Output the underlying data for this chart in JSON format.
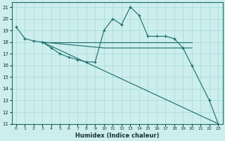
{
  "xlabel": "Humidex (Indice chaleur)",
  "xlim": [
    -0.5,
    23.5
  ],
  "ylim": [
    11,
    21.4
  ],
  "xticks": [
    0,
    1,
    2,
    3,
    4,
    5,
    6,
    7,
    8,
    9,
    10,
    11,
    12,
    13,
    14,
    15,
    16,
    17,
    18,
    19,
    20,
    21,
    22,
    23
  ],
  "yticks": [
    11,
    12,
    13,
    14,
    15,
    16,
    17,
    18,
    19,
    20,
    21
  ],
  "bg_color": "#cceeed",
  "grid_color": "#aadddd",
  "line_color": "#1a6b6b",
  "lines": [
    {
      "x": [
        0,
        1,
        2,
        3,
        4,
        5,
        6,
        7,
        8,
        9,
        10,
        11,
        12,
        13,
        14,
        15,
        16,
        17,
        18,
        19,
        20,
        22,
        23
      ],
      "y": [
        19.3,
        18.3,
        18.1,
        18.0,
        17.5,
        17.0,
        16.7,
        16.5,
        16.3,
        16.3,
        19.0,
        20.0,
        19.5,
        21.0,
        20.3,
        18.5,
        18.5,
        18.5,
        18.3,
        17.5,
        16.0,
        13.0,
        11.0
      ],
      "marker": true
    },
    {
      "x": [
        3,
        20
      ],
      "y": [
        18.0,
        18.0
      ],
      "marker": false
    },
    {
      "x": [
        3,
        10,
        20
      ],
      "y": [
        18.0,
        17.5,
        17.5
      ],
      "marker": false
    },
    {
      "x": [
        3,
        23
      ],
      "y": [
        18.0,
        11.0
      ],
      "marker": false
    }
  ]
}
